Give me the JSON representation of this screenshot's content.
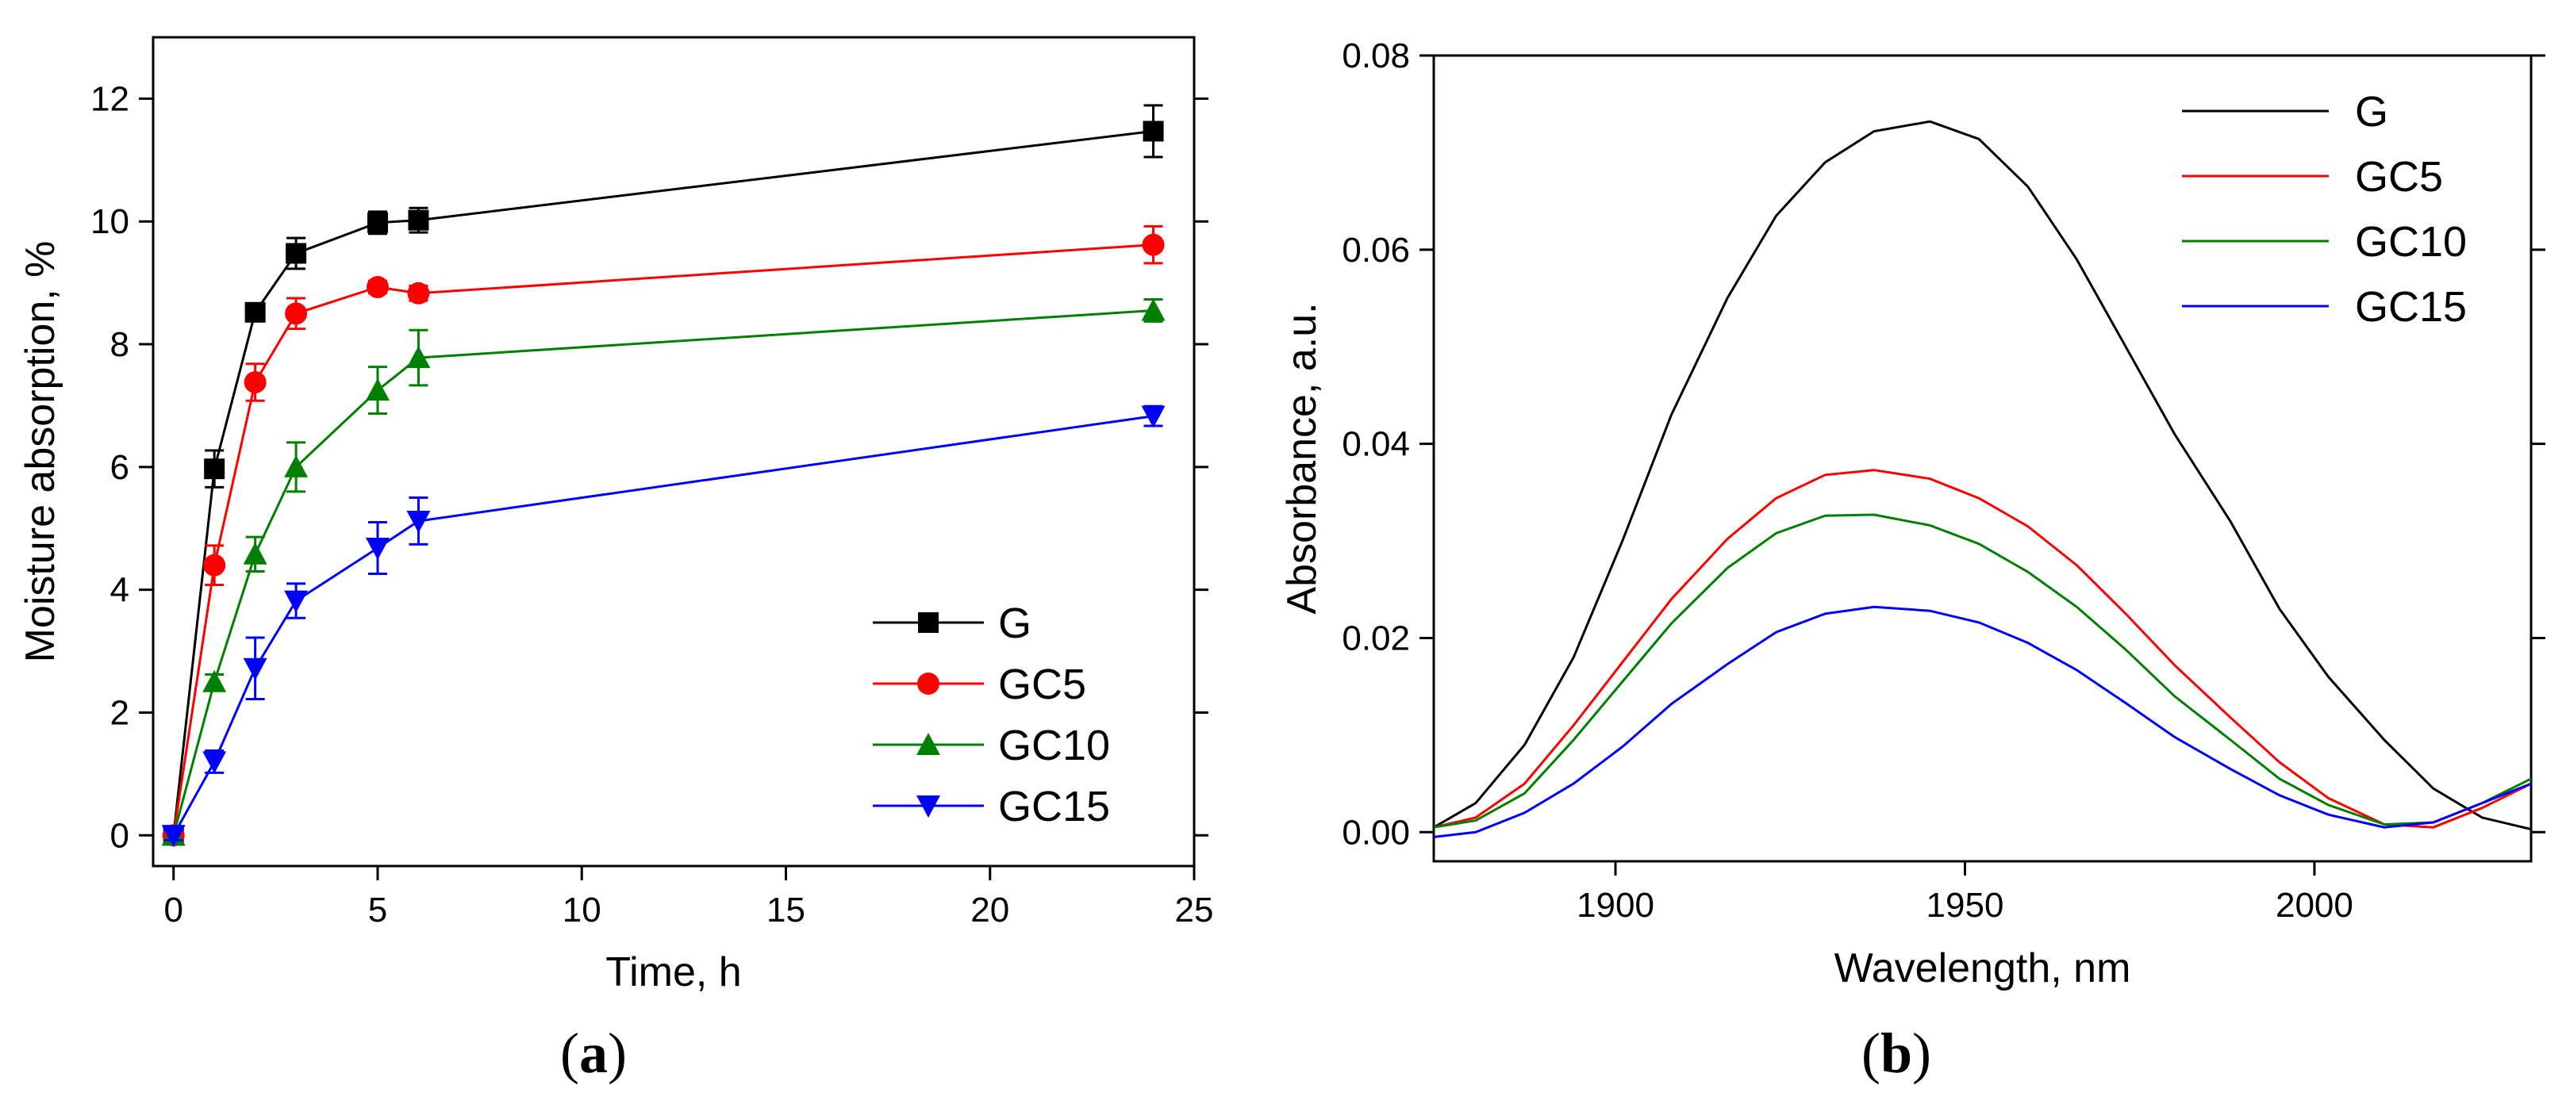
{
  "chart_data": [
    {
      "type": "line",
      "panel_label": "(a)",
      "panel_letter": "a",
      "xlabel": "Time, h",
      "ylabel": "Moisture absorption, %",
      "xlim": [
        -0.5,
        25
      ],
      "ylim": [
        -0.5,
        13
      ],
      "xticks": [
        0,
        5,
        10,
        15,
        20,
        25
      ],
      "yticks": [
        0,
        2,
        4,
        6,
        8,
        10,
        12
      ],
      "xtick_labels": [
        "0",
        "5",
        "10",
        "15",
        "20",
        "25"
      ],
      "ytick_labels": [
        "0",
        "2",
        "4",
        "6",
        "8",
        "10",
        "12"
      ],
      "legend_position": "bottom-right",
      "series": [
        {
          "name": "G",
          "color": "#000000",
          "marker": "square",
          "x": [
            0,
            1,
            2,
            3,
            5,
            6,
            24
          ],
          "y": [
            0,
            5.97,
            8.52,
            9.48,
            9.98,
            10.02,
            11.47
          ],
          "err": [
            0.08,
            0.3,
            0.1,
            0.25,
            0.18,
            0.2,
            0.42
          ]
        },
        {
          "name": "GC5",
          "color": "#ff0000",
          "marker": "circle",
          "x": [
            0,
            1,
            2,
            3,
            5,
            6,
            24
          ],
          "y": [
            0,
            4.4,
            7.38,
            8.5,
            8.93,
            8.83,
            9.62
          ],
          "err": [
            0.08,
            0.32,
            0.3,
            0.25,
            0.1,
            0.12,
            0.3
          ]
        },
        {
          "name": "GC10",
          "color": "#008000",
          "marker": "triangle-up",
          "x": [
            0,
            1,
            2,
            3,
            5,
            6,
            24
          ],
          "y": [
            0,
            2.5,
            4.58,
            6.0,
            7.25,
            7.78,
            8.55
          ],
          "err": [
            0.08,
            0.12,
            0.28,
            0.4,
            0.38,
            0.45,
            0.18
          ]
        },
        {
          "name": "GC15",
          "color": "#0000ff",
          "marker": "triangle-down",
          "x": [
            0,
            1,
            2,
            3,
            5,
            6,
            24
          ],
          "y": [
            0,
            1.2,
            2.72,
            3.82,
            4.68,
            5.12,
            6.83
          ],
          "err": [
            0.08,
            0.18,
            0.5,
            0.28,
            0.42,
            0.38,
            0.16
          ]
        }
      ]
    },
    {
      "type": "line",
      "panel_label": "(b)",
      "panel_letter": "b",
      "xlabel": "Wavelength, nm",
      "ylabel": "Absorbance, a.u.",
      "xlim": [
        1874,
        2031
      ],
      "ylim": [
        -0.003,
        0.08
      ],
      "xticks": [
        1900,
        1950,
        2000
      ],
      "yticks": [
        0.0,
        0.02,
        0.04,
        0.06,
        0.08
      ],
      "xtick_labels": [
        "1900",
        "1950",
        "2000"
      ],
      "ytick_labels": [
        "0.00",
        "0.02",
        "0.04",
        "0.06",
        "0.08"
      ],
      "legend_position": "top-right",
      "series": [
        {
          "name": "G",
          "color": "#000000",
          "x": [
            1874,
            1880,
            1887,
            1894,
            1901,
            1908,
            1916,
            1923,
            1930,
            1937,
            1945,
            1952,
            1959,
            1966,
            1973,
            1980,
            1988,
            1995,
            2002,
            2010,
            2017,
            2024,
            2031
          ],
          "y": [
            0.0005,
            0.003,
            0.009,
            0.018,
            0.03,
            0.043,
            0.055,
            0.0635,
            0.069,
            0.0722,
            0.0732,
            0.0714,
            0.0665,
            0.059,
            0.05,
            0.041,
            0.032,
            0.023,
            0.016,
            0.0095,
            0.0045,
            0.0015,
            0.0003
          ]
        },
        {
          "name": "GC5",
          "color": "#ff0000",
          "x": [
            1874,
            1880,
            1887,
            1894,
            1901,
            1908,
            1916,
            1923,
            1930,
            1937,
            1945,
            1952,
            1959,
            1966,
            1973,
            1980,
            1988,
            1995,
            2002,
            2010,
            2017,
            2024,
            2031
          ],
          "y": [
            0.0005,
            0.0015,
            0.005,
            0.011,
            0.0175,
            0.024,
            0.0302,
            0.0344,
            0.0368,
            0.0373,
            0.0364,
            0.0344,
            0.0315,
            0.0275,
            0.0225,
            0.0172,
            0.0118,
            0.0072,
            0.0035,
            0.0008,
            0.0005,
            0.0025,
            0.005
          ]
        },
        {
          "name": "GC10",
          "color": "#008000",
          "x": [
            1874,
            1880,
            1887,
            1894,
            1901,
            1908,
            1916,
            1923,
            1930,
            1937,
            1945,
            1952,
            1959,
            1966,
            1973,
            1980,
            1988,
            1995,
            2002,
            2010,
            2017,
            2024,
            2031
          ],
          "y": [
            0.0005,
            0.0012,
            0.004,
            0.0095,
            0.0155,
            0.0215,
            0.0272,
            0.0308,
            0.0326,
            0.0327,
            0.0316,
            0.0297,
            0.0268,
            0.0232,
            0.0188,
            0.014,
            0.0095,
            0.0055,
            0.0028,
            0.0008,
            0.001,
            0.003,
            0.0055
          ]
        },
        {
          "name": "GC15",
          "color": "#0000ff",
          "x": [
            1874,
            1880,
            1887,
            1894,
            1901,
            1908,
            1916,
            1923,
            1930,
            1937,
            1945,
            1952,
            1959,
            1966,
            1973,
            1980,
            1988,
            1995,
            2002,
            2010,
            2017,
            2024,
            2031
          ],
          "y": [
            -0.0005,
            0.0,
            0.002,
            0.005,
            0.0088,
            0.0132,
            0.0173,
            0.0206,
            0.0225,
            0.0232,
            0.0228,
            0.0216,
            0.0195,
            0.0167,
            0.0133,
            0.0098,
            0.0065,
            0.0038,
            0.0018,
            0.0005,
            0.001,
            0.003,
            0.005
          ]
        }
      ]
    }
  ]
}
